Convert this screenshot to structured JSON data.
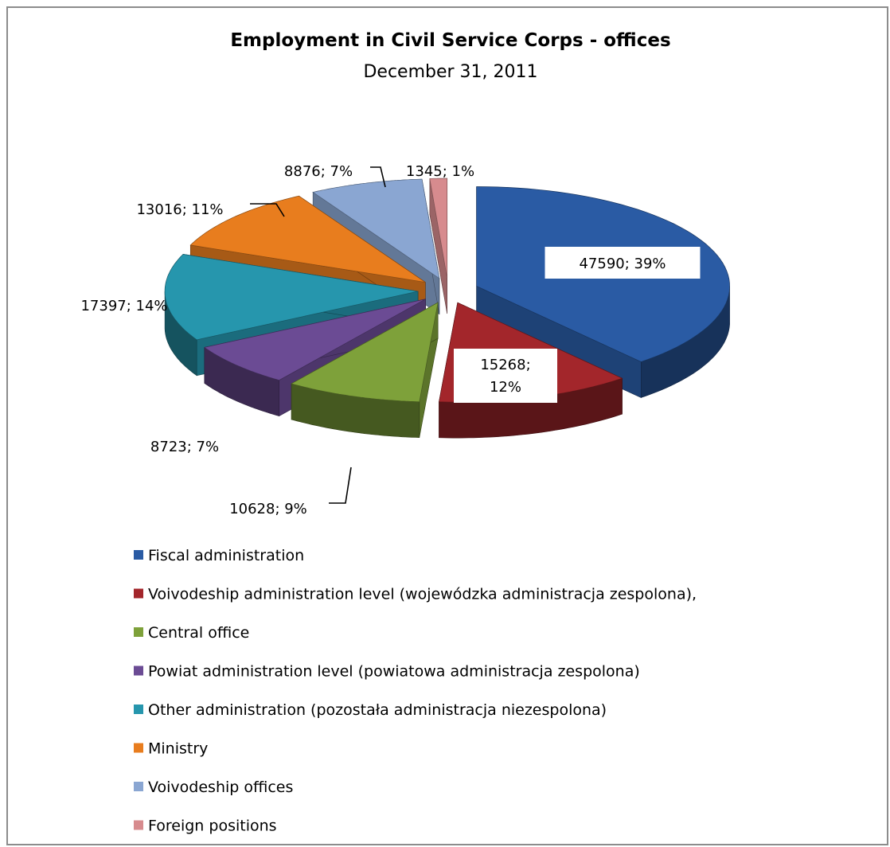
{
  "chart_data": {
    "type": "pie",
    "variant": "exploded-3d",
    "title": "Employment in Civil Service Corps - offices",
    "subtitle": "December 31, 2011",
    "legend_position": "bottom",
    "slices": [
      {
        "label": "Fiscal administration",
        "value": 47590,
        "percent": 39,
        "data_label": "47590; 39%",
        "color": "#2a5ba4"
      },
      {
        "label": "Voivodeship administration level (wojewódzka administracja zespolona),",
        "value": 15268,
        "percent": 12,
        "data_label_lines": [
          "15268;",
          "12%"
        ],
        "color": "#a3262b"
      },
      {
        "label": "Central office",
        "value": 10628,
        "percent": 9,
        "data_label": "10628; 9%",
        "color": "#7ea13a"
      },
      {
        "label": "Powiat administration level (powiatowa administracja zespolona)",
        "value": 8723,
        "percent": 7,
        "data_label": "8723; 7%",
        "color": "#6b4b94"
      },
      {
        "label": "Other administration (pozostała administracja niezespolona)",
        "value": 17397,
        "percent": 14,
        "data_label": "17397; 14%",
        "color": "#2696ad"
      },
      {
        "label": "Ministry",
        "value": 13016,
        "percent": 11,
        "data_label": "13016; 11%",
        "color": "#e87d1e"
      },
      {
        "label": "Voivodeship offices",
        "value": 8876,
        "percent": 7,
        "data_label": "8876; 7%",
        "color": "#8aa6d2"
      },
      {
        "label": "Foreign positions",
        "value": 1345,
        "percent": 1,
        "data_label": "1345; 1%",
        "color": "#d78b8e"
      }
    ]
  }
}
